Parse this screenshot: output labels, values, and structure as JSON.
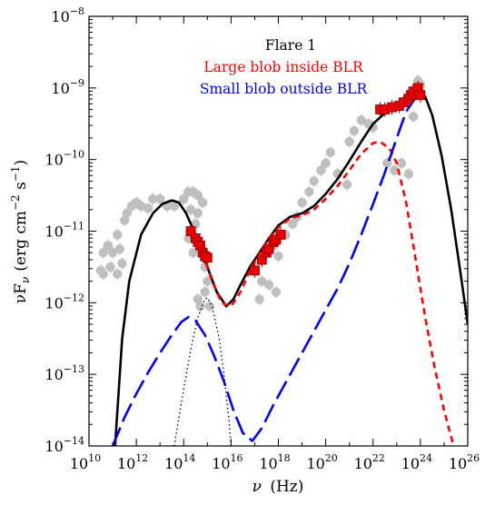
{
  "chart_data": {
    "type": "line",
    "xlabel_var": "ν",
    "xlabel_unit": "(Hz)",
    "ylabel_main": "νF",
    "ylabel_sub": "ν",
    "ylabel_unit": "(erg cm",
    "ylabel_exp1": "−2",
    "ylabel_mid": " s",
    "ylabel_exp2": "−1",
    "ylabel_end": ")",
    "x_log": true,
    "y_log": true,
    "xlim_exp": [
      10,
      26
    ],
    "ylim_exp": [
      -14,
      -8
    ],
    "x_ticks": [
      {
        "base": "10",
        "exp": "10"
      },
      {
        "base": "10",
        "exp": "12"
      },
      {
        "base": "10",
        "exp": "14"
      },
      {
        "base": "10",
        "exp": "16"
      },
      {
        "base": "10",
        "exp": "18"
      },
      {
        "base": "10",
        "exp": "20"
      },
      {
        "base": "10",
        "exp": "22"
      },
      {
        "base": "10",
        "exp": "24"
      },
      {
        "base": "10",
        "exp": "26"
      }
    ],
    "y_ticks": [
      {
        "base": "10",
        "exp": "−14"
      },
      {
        "base": "10",
        "exp": "−13"
      },
      {
        "base": "10",
        "exp": "−12"
      },
      {
        "base": "10",
        "exp": "−11"
      },
      {
        "base": "10",
        "exp": "−10"
      },
      {
        "base": "10",
        "exp": "−9"
      },
      {
        "base": "10",
        "exp": "−8"
      }
    ],
    "legend": [
      {
        "label": "Flare 1",
        "color": "#000000"
      },
      {
        "label": "Large blob inside BLR",
        "color": "#ff0000"
      },
      {
        "label": "Small blob outside BLR",
        "color": "#0000ff"
      }
    ],
    "series": [
      {
        "key": "total",
        "style": "solid",
        "color": "#000000",
        "points": [
          [
            11.1,
            -14
          ],
          [
            11.4,
            -12.5
          ],
          [
            11.7,
            -11.7
          ],
          [
            12.2,
            -11.05
          ],
          [
            12.7,
            -10.75
          ],
          [
            13.1,
            -10.62
          ],
          [
            13.5,
            -10.57
          ],
          [
            13.8,
            -10.6
          ],
          [
            14.1,
            -10.75
          ],
          [
            14.5,
            -11.05
          ],
          [
            15.0,
            -11.5
          ],
          [
            15.4,
            -11.85
          ],
          [
            15.8,
            -12.05
          ],
          [
            16.1,
            -11.95
          ],
          [
            16.4,
            -11.75
          ],
          [
            16.8,
            -11.5
          ],
          [
            17.2,
            -11.3
          ],
          [
            17.6,
            -11.1
          ],
          [
            18.0,
            -10.92
          ],
          [
            18.5,
            -10.8
          ],
          [
            19.0,
            -10.75
          ],
          [
            19.5,
            -10.65
          ],
          [
            20.0,
            -10.48
          ],
          [
            20.5,
            -10.27
          ],
          [
            21.0,
            -10.02
          ],
          [
            21.5,
            -9.75
          ],
          [
            22.0,
            -9.5
          ],
          [
            22.5,
            -9.35
          ],
          [
            23.0,
            -9.25
          ],
          [
            23.5,
            -9.12
          ],
          [
            23.9,
            -9.07
          ],
          [
            24.2,
            -9.12
          ],
          [
            24.5,
            -9.38
          ],
          [
            24.9,
            -9.95
          ],
          [
            25.3,
            -10.7
          ],
          [
            25.7,
            -11.6
          ],
          [
            26.0,
            -12.3
          ]
        ]
      },
      {
        "key": "large-blob",
        "style": "short-dash",
        "color": "#ff0000",
        "points": [
          [
            14.8,
            -11.3
          ],
          [
            15.2,
            -11.7
          ],
          [
            15.6,
            -12.0
          ],
          [
            16.0,
            -12.05
          ],
          [
            16.4,
            -11.85
          ],
          [
            16.8,
            -11.55
          ],
          [
            17.2,
            -11.32
          ],
          [
            17.6,
            -11.1
          ],
          [
            18.0,
            -10.95
          ],
          [
            18.5,
            -10.82
          ],
          [
            19.0,
            -10.78
          ],
          [
            19.5,
            -10.7
          ],
          [
            20.0,
            -10.55
          ],
          [
            20.5,
            -10.37
          ],
          [
            21.0,
            -10.15
          ],
          [
            21.5,
            -9.92
          ],
          [
            22.0,
            -9.77
          ],
          [
            22.3,
            -9.75
          ],
          [
            22.7,
            -9.85
          ],
          [
            23.0,
            -10.05
          ],
          [
            23.4,
            -10.6
          ],
          [
            23.8,
            -11.4
          ],
          [
            24.2,
            -12.2
          ],
          [
            24.6,
            -12.9
          ],
          [
            25.0,
            -13.5
          ],
          [
            25.4,
            -14.0
          ]
        ]
      },
      {
        "key": "small-blob",
        "style": "long-dash",
        "color": "#0000ff",
        "points": [
          [
            11.0,
            -14.0
          ],
          [
            11.5,
            -13.6
          ],
          [
            12.0,
            -13.27
          ],
          [
            12.5,
            -12.97
          ],
          [
            13.0,
            -12.7
          ],
          [
            13.5,
            -12.45
          ],
          [
            13.9,
            -12.27
          ],
          [
            14.2,
            -12.2
          ],
          [
            14.5,
            -12.25
          ],
          [
            14.9,
            -12.45
          ],
          [
            15.3,
            -12.75
          ],
          [
            15.7,
            -13.1
          ],
          [
            16.1,
            -13.5
          ],
          [
            16.5,
            -13.82
          ],
          [
            16.9,
            -13.93
          ],
          [
            17.3,
            -13.75
          ],
          [
            17.8,
            -13.42
          ],
          [
            18.5,
            -13.0
          ],
          [
            19.0,
            -12.7
          ],
          [
            19.5,
            -12.4
          ],
          [
            20.0,
            -12.1
          ],
          [
            20.5,
            -11.8
          ],
          [
            21.0,
            -11.45
          ],
          [
            21.5,
            -11.05
          ],
          [
            22.0,
            -10.62
          ],
          [
            22.5,
            -10.18
          ],
          [
            23.0,
            -9.7
          ],
          [
            23.4,
            -9.33
          ],
          [
            23.8,
            -9.13
          ],
          [
            24.0,
            -9.15
          ]
        ]
      },
      {
        "key": "disk",
        "style": "dotted",
        "color": "#000000",
        "points": [
          [
            13.6,
            -14.0
          ],
          [
            14.0,
            -13.2
          ],
          [
            14.3,
            -12.65
          ],
          [
            14.6,
            -12.2
          ],
          [
            14.9,
            -11.95
          ],
          [
            15.0,
            -11.93
          ],
          [
            15.2,
            -12.05
          ],
          [
            15.5,
            -12.5
          ],
          [
            15.7,
            -13.0
          ],
          [
            15.9,
            -13.6
          ],
          [
            16.0,
            -14.0
          ]
        ]
      }
    ],
    "flare_points": [
      [
        14.3,
        -11.0
      ],
      [
        14.5,
        -11.1
      ],
      [
        14.6,
        -11.15
      ],
      [
        14.7,
        -11.2
      ],
      [
        14.8,
        -11.3
      ],
      [
        14.9,
        -11.35
      ],
      [
        15.0,
        -11.37
      ],
      [
        17.0,
        -11.55
      ],
      [
        17.3,
        -11.4
      ],
      [
        17.5,
        -11.3
      ],
      [
        17.6,
        -11.25
      ],
      [
        17.8,
        -11.15
      ],
      [
        17.9,
        -11.12
      ],
      [
        18.1,
        -11.05
      ],
      [
        22.3,
        -9.3
      ],
      [
        22.5,
        -9.3
      ],
      [
        22.8,
        -9.27
      ],
      [
        23.1,
        -9.25
      ],
      [
        23.3,
        -9.2
      ],
      [
        23.5,
        -9.15
      ],
      [
        23.6,
        -9.1
      ],
      [
        23.7,
        -9.05
      ],
      [
        23.9,
        -9.0
      ],
      [
        24.0,
        -9.1
      ]
    ],
    "archival_points": [
      [
        10.5,
        -11.55
      ],
      [
        10.6,
        -11.3
      ],
      [
        10.6,
        -11.6
      ],
      [
        10.8,
        -11.2
      ],
      [
        10.9,
        -11.5
      ],
      [
        11.0,
        -11.3
      ],
      [
        11.2,
        -11.6
      ],
      [
        11.3,
        -11.25
      ],
      [
        11.4,
        -11.45
      ],
      [
        11.2,
        -11.05
      ],
      [
        11.5,
        -10.85
      ],
      [
        11.6,
        -10.75
      ],
      [
        11.8,
        -10.65
      ],
      [
        12.0,
        -10.6
      ],
      [
        12.2,
        -10.65
      ],
      [
        12.5,
        -10.68
      ],
      [
        12.7,
        -10.55
      ],
      [
        13.0,
        -10.55
      ],
      [
        13.3,
        -10.65
      ],
      [
        13.6,
        -10.65
      ],
      [
        14.0,
        -10.55
      ],
      [
        14.2,
        -10.45
      ],
      [
        14.4,
        -10.45
      ],
      [
        14.6,
        -10.5
      ],
      [
        14.3,
        -10.7
      ],
      [
        14.6,
        -10.75
      ],
      [
        14.8,
        -10.6
      ],
      [
        14.5,
        -10.9
      ],
      [
        14.2,
        -11.1
      ],
      [
        14.4,
        -11.3
      ],
      [
        14.9,
        -11.5
      ],
      [
        15.0,
        -11.7
      ],
      [
        14.6,
        -11.95
      ],
      [
        14.7,
        -12.05
      ],
      [
        14.9,
        -11.85
      ],
      [
        15.1,
        -12.05
      ],
      [
        17.3,
        -11.7
      ],
      [
        17.6,
        -11.75
      ],
      [
        17.9,
        -11.85
      ],
      [
        17.2,
        -11.95
      ],
      [
        17.8,
        -11.2
      ],
      [
        18.0,
        -11.35
      ],
      [
        18.3,
        -11.05
      ],
      [
        18.6,
        -10.9
      ],
      [
        18.8,
        -10.8
      ],
      [
        19.0,
        -10.6
      ],
      [
        19.3,
        -10.45
      ],
      [
        19.5,
        -10.3
      ],
      [
        19.8,
        -10.15
      ],
      [
        20.0,
        -10.05
      ],
      [
        20.2,
        -9.9
      ],
      [
        20.5,
        -10.2
      ],
      [
        20.9,
        -10.35
      ],
      [
        21.0,
        -9.75
      ],
      [
        21.2,
        -9.6
      ],
      [
        21.5,
        -9.45
      ],
      [
        21.8,
        -9.5
      ],
      [
        22.0,
        -9.55
      ],
      [
        22.3,
        -9.3
      ],
      [
        22.6,
        -10.05
      ],
      [
        22.9,
        -10.15
      ],
      [
        23.2,
        -10.05
      ],
      [
        23.5,
        -10.2
      ],
      [
        23.7,
        -9.4
      ],
      [
        23.8,
        -9.0
      ],
      [
        23.9,
        -8.9
      ],
      [
        24.0,
        -8.95
      ]
    ]
  }
}
